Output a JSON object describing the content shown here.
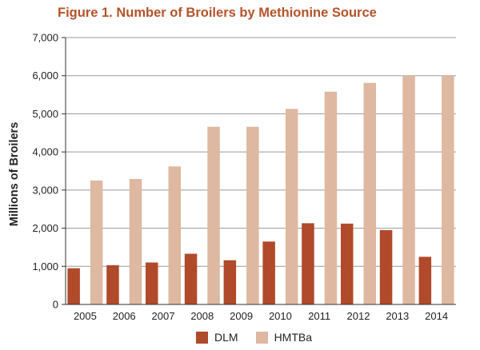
{
  "chart_data": {
    "type": "bar",
    "title": "Figure 1. Number of Broilers by Methionine Source",
    "xlabel": "",
    "ylabel": "Millions of Broilers",
    "categories": [
      "2005",
      "2006",
      "2007",
      "2008",
      "2009",
      "2010",
      "2011",
      "2012",
      "2013",
      "2014"
    ],
    "series": [
      {
        "name": "DLM",
        "color": "#b04a2a",
        "values": [
          950,
          1030,
          1100,
          1330,
          1160,
          1650,
          2130,
          2120,
          1950,
          1250
        ]
      },
      {
        "name": "HMTBa",
        "color": "#deb8a0",
        "values": [
          3250,
          3290,
          3620,
          4660,
          4660,
          5130,
          5580,
          5810,
          6000,
          6000
        ]
      }
    ],
    "ylim": [
      0,
      7000
    ],
    "yticks": [
      0,
      1000,
      2000,
      3000,
      4000,
      5000,
      6000,
      7000
    ],
    "ytick_labels": [
      "0",
      "1,000",
      "2,000",
      "3,000",
      "4,000",
      "5,000",
      "6,000",
      "7,000"
    ],
    "grid": true,
    "legend_position": "bottom-center"
  }
}
